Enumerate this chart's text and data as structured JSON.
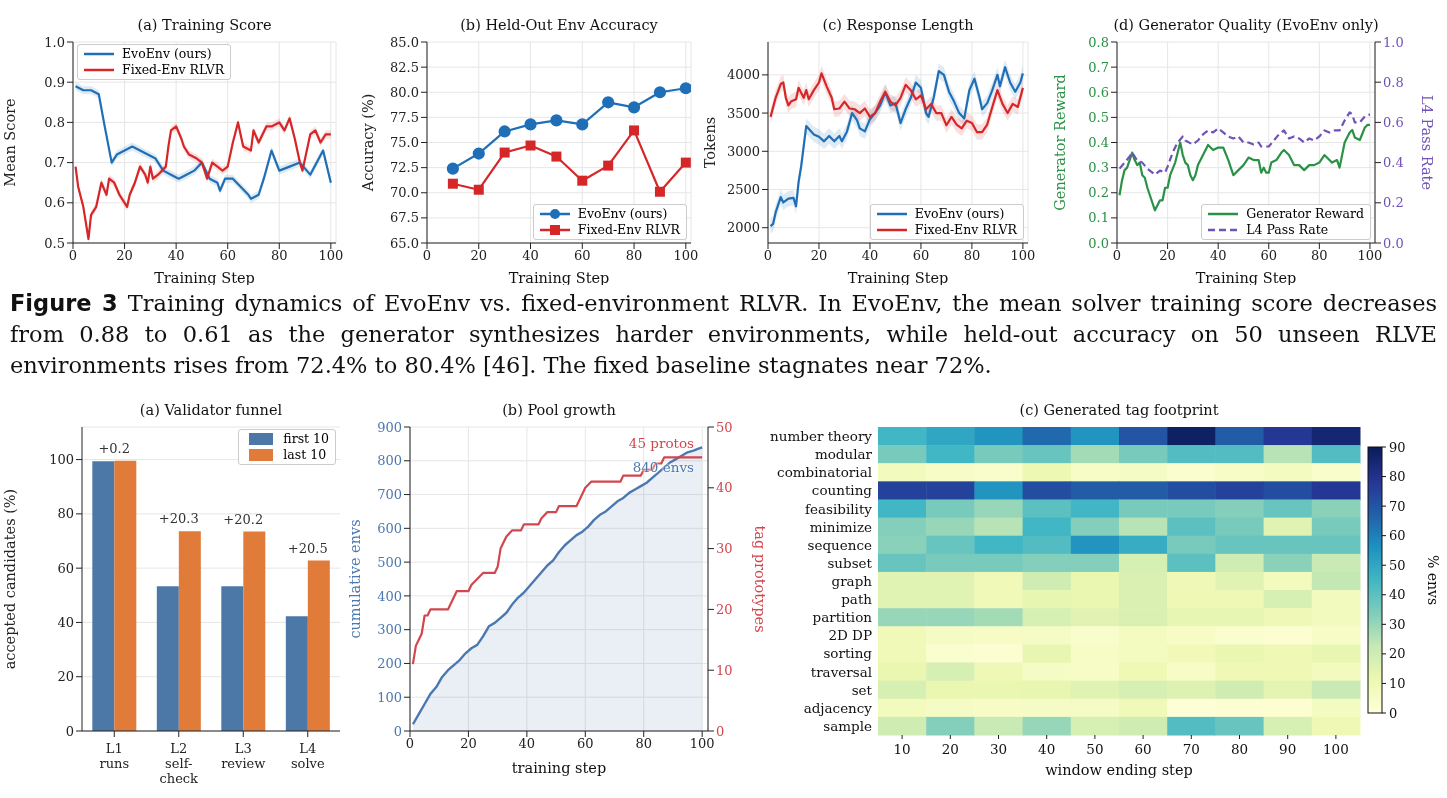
{
  "chart_data": [
    {
      "type": "line",
      "title": "(a) Training Score",
      "xlabel": "Training Step",
      "ylabel": "Mean Score",
      "xlim": [
        0,
        102
      ],
      "xticks": [
        0,
        20,
        40,
        60,
        80,
        100
      ],
      "ylim": [
        0.5,
        1.0
      ],
      "yticks": [
        0.5,
        0.6,
        0.7,
        0.8,
        0.9,
        {
          "value": 1.0,
          "label": "1.0"
        }
      ],
      "grid": true,
      "legend": "top left",
      "series": [
        {
          "name": "EvoEnv (ours)",
          "color": "#1f6fb8",
          "x": [
            1,
            4,
            7,
            10,
            12,
            15,
            17,
            20,
            23,
            26,
            29,
            32,
            35,
            38,
            41,
            44,
            47,
            50,
            53,
            56,
            57,
            59,
            62,
            65,
            68,
            69,
            72,
            74,
            77,
            80,
            84,
            88,
            92,
            97,
            100
          ],
          "values": [
            0.89,
            0.88,
            0.88,
            0.87,
            0.8,
            0.7,
            0.72,
            0.73,
            0.74,
            0.73,
            0.72,
            0.71,
            0.68,
            0.67,
            0.66,
            0.67,
            0.68,
            0.7,
            0.66,
            0.65,
            0.63,
            0.66,
            0.66,
            0.64,
            0.62,
            0.61,
            0.62,
            0.66,
            0.73,
            0.68,
            0.69,
            0.7,
            0.67,
            0.73,
            0.65
          ],
          "lower": [
            0.88,
            0.87,
            0.87,
            0.86,
            0.79,
            0.69,
            0.71,
            0.72,
            0.73,
            0.72,
            0.71,
            0.7,
            0.67,
            0.66,
            0.65,
            0.66,
            0.67,
            0.69,
            0.65,
            0.64,
            0.62,
            0.65,
            0.65,
            0.63,
            0.61,
            0.6,
            0.61,
            0.65,
            0.72,
            0.67,
            0.68,
            0.69,
            0.66,
            0.72,
            0.64
          ],
          "upper": [
            0.9,
            0.89,
            0.89,
            0.88,
            0.81,
            0.71,
            0.73,
            0.74,
            0.75,
            0.74,
            0.73,
            0.72,
            0.69,
            0.68,
            0.67,
            0.68,
            0.69,
            0.71,
            0.67,
            0.66,
            0.64,
            0.67,
            0.67,
            0.65,
            0.63,
            0.62,
            0.63,
            0.67,
            0.74,
            0.69,
            0.7,
            0.71,
            0.68,
            0.74,
            0.66
          ]
        },
        {
          "name": "Fixed-Env RLVR",
          "color": "#d62728",
          "x": [
            1,
            2,
            4,
            6,
            7,
            9,
            11,
            13,
            14,
            16,
            18,
            21,
            22,
            24,
            26,
            28,
            29,
            30,
            31,
            33,
            36,
            37,
            38,
            40,
            42,
            43,
            45,
            48,
            50,
            52,
            54,
            56,
            58,
            60,
            62,
            64,
            66,
            69,
            70,
            72,
            75,
            77,
            80,
            82,
            84,
            86,
            88,
            89,
            92,
            94,
            96,
            98,
            100
          ],
          "values": [
            0.69,
            0.64,
            0.59,
            0.51,
            0.57,
            0.59,
            0.65,
            0.62,
            0.66,
            0.65,
            0.62,
            0.59,
            0.62,
            0.65,
            0.69,
            0.67,
            0.65,
            0.69,
            0.66,
            0.67,
            0.69,
            0.74,
            0.78,
            0.79,
            0.76,
            0.74,
            0.72,
            0.71,
            0.7,
            0.66,
            0.7,
            0.69,
            0.68,
            0.69,
            0.75,
            0.8,
            0.74,
            0.73,
            0.78,
            0.75,
            0.79,
            0.79,
            0.8,
            0.78,
            0.81,
            0.76,
            0.7,
            0.68,
            0.77,
            0.78,
            0.75,
            0.77,
            0.77
          ],
          "lower": [
            0.68,
            0.63,
            0.58,
            0.5,
            0.56,
            0.58,
            0.64,
            0.61,
            0.65,
            0.64,
            0.61,
            0.58,
            0.61,
            0.64,
            0.68,
            0.66,
            0.64,
            0.68,
            0.65,
            0.66,
            0.68,
            0.73,
            0.77,
            0.78,
            0.75,
            0.73,
            0.71,
            0.7,
            0.69,
            0.65,
            0.69,
            0.68,
            0.67,
            0.68,
            0.74,
            0.79,
            0.73,
            0.72,
            0.77,
            0.74,
            0.78,
            0.78,
            0.79,
            0.77,
            0.8,
            0.75,
            0.69,
            0.67,
            0.76,
            0.77,
            0.74,
            0.76,
            0.76
          ],
          "upper": [
            0.7,
            0.65,
            0.6,
            0.52,
            0.58,
            0.6,
            0.66,
            0.63,
            0.67,
            0.66,
            0.63,
            0.6,
            0.63,
            0.66,
            0.7,
            0.68,
            0.66,
            0.7,
            0.67,
            0.68,
            0.7,
            0.75,
            0.79,
            0.8,
            0.77,
            0.75,
            0.73,
            0.72,
            0.71,
            0.67,
            0.71,
            0.7,
            0.69,
            0.7,
            0.76,
            0.81,
            0.75,
            0.74,
            0.79,
            0.76,
            0.8,
            0.8,
            0.81,
            0.79,
            0.82,
            0.77,
            0.71,
            0.69,
            0.78,
            0.79,
            0.76,
            0.78,
            0.78
          ]
        }
      ]
    },
    {
      "type": "line",
      "title": "(b) Held-Out Env Accuracy",
      "xlabel": "Training Step",
      "ylabel": "Accuracy (%)",
      "xlim": [
        0,
        102
      ],
      "xticks": [
        0,
        20,
        40,
        60,
        80,
        100
      ],
      "ylim": [
        65,
        85
      ],
      "yticks": [
        {
          "value": 65,
          "label": "65.0"
        },
        67.5,
        {
          "value": 70,
          "label": "70.0"
        },
        72.5,
        {
          "value": 75,
          "label": "75.0"
        },
        77.5,
        {
          "value": 80,
          "label": "80.0"
        },
        82.5,
        {
          "value": 85,
          "label": "85.0"
        }
      ],
      "grid": true,
      "legend": "bottom right",
      "x": [
        10,
        20,
        30,
        40,
        50,
        60,
        70,
        80,
        90,
        100
      ],
      "series": [
        {
          "name": "EvoEnv (ours)",
          "color": "#1f6fb8",
          "marker": "circle",
          "values": [
            72.4,
            73.9,
            76.1,
            76.8,
            77.2,
            76.8,
            79.0,
            78.5,
            80.0,
            80.4
          ]
        },
        {
          "name": "Fixed-Env RLVR",
          "color": "#d62728",
          "marker": "square",
          "values": [
            70.9,
            70.3,
            74.0,
            74.7,
            73.6,
            71.2,
            72.7,
            76.2,
            70.1,
            73.0
          ]
        }
      ]
    },
    {
      "type": "line",
      "title": "(c) Response Length",
      "xlabel": "Training Step",
      "ylabel": "Tokens",
      "xlim": [
        0,
        102
      ],
      "xticks": [
        0,
        20,
        40,
        60,
        80,
        100
      ],
      "ylim": [
        1800,
        4430
      ],
      "yticks": [
        2000,
        2500,
        3000,
        3500,
        4000
      ],
      "grid": true,
      "legend": "bottom right",
      "series": [
        {
          "name": "EvoEnv (ours)",
          "color": "#1f6fb8",
          "x": [
            1,
            2,
            3,
            5,
            6,
            8,
            10,
            11,
            12,
            13,
            15,
            18,
            20,
            22,
            24,
            26,
            28,
            29,
            31,
            33,
            35,
            36,
            38,
            40,
            42,
            44,
            46,
            48,
            50,
            52,
            54,
            56,
            58,
            60,
            62,
            63,
            65,
            67,
            69,
            71,
            73,
            75,
            77,
            79,
            81,
            83,
            84,
            86,
            88,
            90,
            91,
            93,
            95,
            97,
            99,
            100
          ],
          "values": [
            2020,
            2050,
            2200,
            2400,
            2330,
            2380,
            2390,
            2280,
            2600,
            2800,
            3330,
            3220,
            3190,
            3130,
            3200,
            3130,
            3200,
            3130,
            3260,
            3500,
            3400,
            3300,
            3260,
            3420,
            3500,
            3600,
            3770,
            3600,
            3630,
            3370,
            3550,
            3700,
            3900,
            3830,
            3500,
            3450,
            3700,
            4050,
            4000,
            3780,
            3650,
            3500,
            3430,
            3800,
            3950,
            3700,
            3550,
            3630,
            3800,
            4000,
            3850,
            4100,
            3900,
            3780,
            3900,
            4020
          ],
          "lower": [
            1920,
            1950,
            2100,
            2300,
            2230,
            2280,
            2290,
            2180,
            2500,
            2700,
            3230,
            3120,
            3090,
            3030,
            3100,
            3030,
            3100,
            3030,
            3160,
            3400,
            3300,
            3200,
            3160,
            3320,
            3400,
            3500,
            3670,
            3500,
            3530,
            3270,
            3450,
            3600,
            3800,
            3730,
            3400,
            3350,
            3600,
            3950,
            3900,
            3680,
            3550,
            3400,
            3330,
            3700,
            3850,
            3600,
            3450,
            3530,
            3700,
            3900,
            3750,
            4000,
            3800,
            3680,
            3800,
            3920
          ],
          "upper": [
            2120,
            2150,
            2300,
            2500,
            2430,
            2480,
            2490,
            2380,
            2700,
            2900,
            3430,
            3320,
            3290,
            3230,
            3300,
            3230,
            3300,
            3230,
            3360,
            3600,
            3500,
            3400,
            3360,
            3520,
            3600,
            3700,
            3870,
            3700,
            3730,
            3470,
            3650,
            3800,
            4000,
            3930,
            3600,
            3550,
            3800,
            4150,
            4100,
            3880,
            3750,
            3600,
            3530,
            3900,
            4050,
            3800,
            3650,
            3730,
            3900,
            4100,
            3950,
            4200,
            4000,
            3880,
            4000,
            4120
          ]
        },
        {
          "name": "Fixed-Env RLVR",
          "color": "#d62728",
          "x": [
            1,
            3,
            5,
            6,
            7,
            8,
            9,
            11,
            12,
            14,
            15,
            16,
            18,
            20,
            21,
            23,
            25,
            26,
            28,
            30,
            32,
            34,
            36,
            38,
            40,
            42,
            44,
            46,
            48,
            50,
            52,
            54,
            56,
            58,
            60,
            62,
            64,
            66,
            68,
            70,
            72,
            74,
            76,
            78,
            80,
            82,
            84,
            86,
            88,
            90,
            92,
            94,
            96,
            98,
            100
          ],
          "values": [
            3450,
            3700,
            3880,
            3900,
            3700,
            3600,
            3650,
            3680,
            3830,
            3700,
            3800,
            3680,
            3800,
            3900,
            4020,
            3850,
            3700,
            3550,
            3560,
            3650,
            3560,
            3550,
            3500,
            3560,
            3450,
            3500,
            3650,
            3780,
            3650,
            3600,
            3700,
            3870,
            3800,
            3680,
            3730,
            3550,
            3620,
            3500,
            3500,
            3340,
            3450,
            3350,
            3300,
            3400,
            3370,
            3250,
            3250,
            3350,
            3580,
            3800,
            3620,
            3500,
            3620,
            3580,
            3830
          ],
          "lower": [
            3350,
            3600,
            3780,
            3800,
            3600,
            3500,
            3550,
            3580,
            3730,
            3600,
            3700,
            3580,
            3700,
            3800,
            3920,
            3750,
            3600,
            3450,
            3460,
            3550,
            3460,
            3450,
            3400,
            3460,
            3350,
            3400,
            3550,
            3680,
            3550,
            3500,
            3600,
            3770,
            3700,
            3580,
            3630,
            3450,
            3520,
            3400,
            3400,
            3240,
            3350,
            3250,
            3200,
            3300,
            3270,
            3150,
            3150,
            3250,
            3480,
            3700,
            3520,
            3400,
            3520,
            3480,
            3730
          ],
          "upper": [
            3550,
            3800,
            3980,
            4000,
            3800,
            3700,
            3750,
            3780,
            3930,
            3800,
            3900,
            3780,
            3900,
            4000,
            4120,
            3950,
            3800,
            3650,
            3660,
            3750,
            3660,
            3650,
            3600,
            3660,
            3550,
            3600,
            3750,
            3880,
            3750,
            3700,
            3800,
            3970,
            3900,
            3780,
            3830,
            3650,
            3720,
            3600,
            3600,
            3440,
            3550,
            3450,
            3400,
            3500,
            3470,
            3350,
            3350,
            3450,
            3680,
            3900,
            3720,
            3600,
            3720,
            3680,
            3930
          ]
        }
      ]
    },
    {
      "type": "line",
      "title": "(d) Generator Quality (EvoEnv only)",
      "xlabel": "Training Step",
      "ylabel": "Generator Reward",
      "y2label": "L4 Pass Rate",
      "xlim": [
        0,
        102
      ],
      "xticks": [
        0,
        20,
        40,
        60,
        80,
        100
      ],
      "ylim": [
        0,
        0.8
      ],
      "yticks": [
        {
          "value": 0,
          "label": "0.0"
        },
        0.1,
        0.2,
        0.3,
        0.4,
        0.5,
        0.6,
        0.7,
        0.8
      ],
      "y2lim": [
        0,
        1
      ],
      "y2ticks": [
        {
          "value": 0,
          "label": "0.0"
        },
        0.2,
        0.4,
        0.6,
        0.8,
        {
          "value": 1,
          "label": "1.0"
        }
      ],
      "grid": true,
      "legend": "bottom right",
      "series": [
        {
          "name": "Generator Reward",
          "color": "#2a9146",
          "x": [
            1,
            2,
            3,
            4,
            6,
            7,
            8,
            9,
            10,
            11,
            12,
            13,
            15,
            16,
            17,
            18,
            19,
            20,
            21,
            23,
            25,
            26,
            27,
            28,
            29,
            30,
            31,
            32,
            34,
            36,
            38,
            40,
            42,
            44,
            46,
            48,
            50,
            52,
            54,
            56,
            57,
            58,
            59,
            60,
            61,
            63,
            65,
            66,
            68,
            70,
            72,
            74,
            76,
            78,
            80,
            82,
            84,
            85,
            87,
            88,
            90,
            92,
            93,
            94,
            96,
            98,
            99,
            100
          ],
          "values": [
            0.19,
            0.25,
            0.29,
            0.3,
            0.36,
            0.33,
            0.31,
            0.32,
            0.27,
            0.26,
            0.22,
            0.19,
            0.13,
            0.15,
            0.17,
            0.17,
            0.22,
            0.22,
            0.27,
            0.32,
            0.4,
            0.35,
            0.32,
            0.31,
            0.27,
            0.25,
            0.27,
            0.31,
            0.35,
            0.39,
            0.37,
            0.38,
            0.38,
            0.33,
            0.27,
            0.29,
            0.31,
            0.34,
            0.33,
            0.33,
            0.28,
            0.3,
            0.28,
            0.28,
            0.32,
            0.33,
            0.36,
            0.37,
            0.35,
            0.31,
            0.31,
            0.29,
            0.31,
            0.31,
            0.32,
            0.35,
            0.33,
            0.32,
            0.33,
            0.3,
            0.4,
            0.44,
            0.45,
            0.42,
            0.41,
            0.46,
            0.47,
            0.47
          ]
        },
        {
          "name": "L4 Pass Rate",
          "color": "#7052b8",
          "axis": "y2",
          "line_style": "dashed",
          "x": [
            1,
            3,
            5,
            6,
            8,
            10,
            12,
            14,
            15,
            17,
            19,
            20,
            22,
            24,
            26,
            27,
            30,
            32,
            34,
            36,
            38,
            40,
            42,
            44,
            46,
            48,
            50,
            52,
            54,
            56,
            57,
            58,
            60,
            62,
            64,
            66,
            68,
            70,
            72,
            74,
            76,
            78,
            80,
            82,
            84,
            86,
            88,
            90,
            92,
            93,
            94,
            96,
            98,
            100
          ],
          "values": [
            0.37,
            0.4,
            0.43,
            0.45,
            0.41,
            0.4,
            0.37,
            0.35,
            0.34,
            0.36,
            0.35,
            0.38,
            0.45,
            0.5,
            0.53,
            0.51,
            0.49,
            0.51,
            0.54,
            0.56,
            0.55,
            0.57,
            0.55,
            0.53,
            0.52,
            0.53,
            0.5,
            0.5,
            0.49,
            0.5,
            0.48,
            0.48,
            0.48,
            0.51,
            0.54,
            0.56,
            0.52,
            0.53,
            0.52,
            0.5,
            0.52,
            0.51,
            0.53,
            0.56,
            0.55,
            0.56,
            0.56,
            0.61,
            0.65,
            0.64,
            0.6,
            0.6,
            0.63,
            0.64
          ]
        }
      ]
    },
    {
      "type": "other",
      "title": "Figure 3",
      "annotations": [
        "Training dynamics of EvoEnv vs. fixed-environment RLVR. In EvoEnv, the mean solver training score decreases from 0.88 to 0.61 as the generator synthesizes harder environments, while held-out accuracy on 50 unseen RLVE environments rises from 72.4% to 80.4% [46]. The fixed baseline stagnates near 72%."
      ]
    },
    {
      "type": "bar",
      "title": "(a) Validator funnel",
      "ylabel": "accepted candidates (%)",
      "categories": [
        "L1\nruns",
        "L2\nself-\ncheck",
        "L3\nreview",
        "L4\nsolve"
      ],
      "ylim": [
        0,
        112
      ],
      "yticks": [
        0,
        20,
        40,
        60,
        80,
        100
      ],
      "grid": "y",
      "legend": "top right",
      "series": [
        {
          "name": "first 10",
          "color": "#4c78a8",
          "values": [
            99.4,
            53.3,
            53.3,
            42.3
          ]
        },
        {
          "name": "last 10",
          "color": "#e07b39",
          "values": [
            99.6,
            73.6,
            73.5,
            62.8
          ]
        }
      ],
      "annotations": [
        {
          "text": "+0.2",
          "x": "L1\nruns",
          "y": 99.6
        },
        {
          "text": "+20.3",
          "x": "L2\nself-\ncheck",
          "y": 73.6
        },
        {
          "text": "+20.2",
          "x": "L3\nreview",
          "y": 73.5
        },
        {
          "text": "+20.5",
          "x": "L4\nsolve",
          "y": 62.8
        }
      ]
    },
    {
      "type": "line",
      "title": "(b) Pool growth",
      "xlabel": "training step",
      "ylabel": "cumulative envs",
      "y2label": "tag prototypes",
      "xlim": [
        0,
        102
      ],
      "xticks": [
        0,
        20,
        40,
        60,
        80,
        100
      ],
      "ylim": [
        0,
        900
      ],
      "yticks": [
        0,
        100,
        200,
        300,
        400,
        500,
        600,
        700,
        800,
        900
      ],
      "y2lim": [
        0,
        50
      ],
      "y2ticks": [
        0,
        10,
        20,
        30,
        40,
        50
      ],
      "grid": true,
      "annotations": [
        "45 protos",
        "840 envs"
      ],
      "series": [
        {
          "type": "area",
          "color": "#4c78b0",
          "x": [
            1,
            3,
            5,
            7,
            9,
            11,
            13,
            15,
            17,
            19,
            21,
            23,
            25,
            27,
            29,
            31,
            33,
            35,
            37,
            39,
            41,
            43,
            45,
            47,
            49,
            51,
            53,
            55,
            57,
            59,
            61,
            63,
            65,
            67,
            69,
            71,
            73,
            75,
            77,
            79,
            81,
            83,
            85,
            87,
            89,
            91,
            93,
            95,
            97,
            99,
            100
          ],
          "values": [
            20,
            50,
            80,
            110,
            130,
            160,
            180,
            195,
            210,
            230,
            245,
            255,
            280,
            310,
            320,
            335,
            350,
            375,
            395,
            410,
            430,
            450,
            470,
            490,
            505,
            530,
            550,
            565,
            580,
            590,
            605,
            625,
            640,
            650,
            665,
            680,
            690,
            705,
            715,
            725,
            735,
            750,
            765,
            780,
            795,
            805,
            815,
            825,
            830,
            837,
            840
          ]
        },
        {
          "color": "#d1474e",
          "axis": "y2",
          "x": [
            1,
            2,
            3,
            4,
            5,
            6,
            7,
            13,
            16,
            20,
            21,
            23,
            25,
            29,
            30,
            31,
            32,
            33,
            35,
            38,
            39,
            44,
            45,
            47,
            50,
            51,
            57,
            58,
            60,
            62,
            72,
            73,
            79,
            80,
            83,
            84,
            86,
            87,
            100
          ],
          "values": [
            11,
            14,
            15,
            16,
            19,
            19,
            20,
            20,
            23,
            23,
            24,
            25,
            26,
            26,
            27,
            30,
            31,
            32,
            33,
            33,
            34,
            34,
            35,
            36,
            36,
            37,
            37,
            38,
            40,
            41,
            41,
            42,
            42,
            43,
            43,
            44,
            44,
            45,
            45
          ]
        }
      ]
    },
    {
      "type": "heatmap",
      "title": "(c) Generated tag footprint",
      "xlabel": "window ending step",
      "clabel": "% envs",
      "clim": [
        0,
        90
      ],
      "cticks": [
        0,
        10,
        20,
        30,
        40,
        50,
        60,
        70,
        80,
        90
      ],
      "categories": [
        "10",
        "20",
        "30",
        "40",
        "50",
        "60",
        "70",
        "80",
        "90",
        "100"
      ],
      "y_categories": [
        "number theory",
        "modular",
        "combinatorial",
        "counting",
        "feasibility",
        "minimize",
        "sequence",
        "subset",
        "graph",
        "path",
        "partition",
        "2D DP",
        "sorting",
        "traversal",
        "set",
        "adjacency",
        "sample"
      ],
      "cells": [
        [
          45,
          50,
          55,
          65,
          55,
          70,
          88,
          68,
          78,
          85
        ],
        [
          35,
          45,
          35,
          38,
          28,
          35,
          42,
          42,
          25,
          42
        ],
        [
          8,
          5,
          4,
          11,
          5,
          6,
          3,
          5,
          7,
          4
        ],
        [
          75,
          75,
          55,
          72,
          68,
          68,
          72,
          75,
          72,
          78
        ],
        [
          45,
          35,
          30,
          40,
          45,
          35,
          35,
          33,
          38,
          32
        ],
        [
          33,
          30,
          25,
          45,
          33,
          25,
          40,
          35,
          15,
          35
        ],
        [
          32,
          38,
          45,
          42,
          55,
          48,
          35,
          38,
          38,
          38
        ],
        [
          38,
          35,
          35,
          33,
          33,
          18,
          40,
          20,
          32,
          22
        ],
        [
          15,
          15,
          9,
          20,
          12,
          17,
          10,
          15,
          8,
          23
        ],
        [
          15,
          15,
          9,
          13,
          12,
          17,
          10,
          10,
          18,
          8
        ],
        [
          30,
          30,
          28,
          18,
          15,
          17,
          13,
          13,
          10,
          8
        ],
        [
          9,
          6,
          5,
          6,
          4,
          7,
          5,
          3,
          2,
          5
        ],
        [
          9,
          3,
          2,
          13,
          5,
          7,
          9,
          12,
          10,
          13
        ],
        [
          12,
          18,
          10,
          6,
          5,
          10,
          5,
          10,
          10,
          8
        ],
        [
          18,
          12,
          12,
          13,
          15,
          18,
          16,
          20,
          14,
          22
        ],
        [
          8,
          6,
          5,
          6,
          6,
          9,
          1,
          2,
          2,
          7
        ],
        [
          20,
          33,
          22,
          30,
          18,
          20,
          42,
          38,
          18,
          10
        ]
      ]
    }
  ]
}
